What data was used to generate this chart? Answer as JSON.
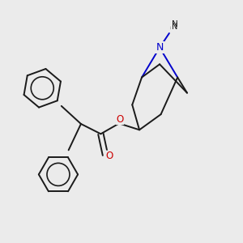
{
  "background_color": "#ebebeb",
  "bond_color": "#1a1a1a",
  "nitrogen_color": "#0000cc",
  "oxygen_color": "#cc0000",
  "figsize": [
    3.0,
    3.0
  ],
  "dpi": 100,
  "N_label": "N",
  "methyl_label": "N",
  "O_ester_label": "O",
  "O_carbonyl_label": "O",
  "lw": 1.4
}
